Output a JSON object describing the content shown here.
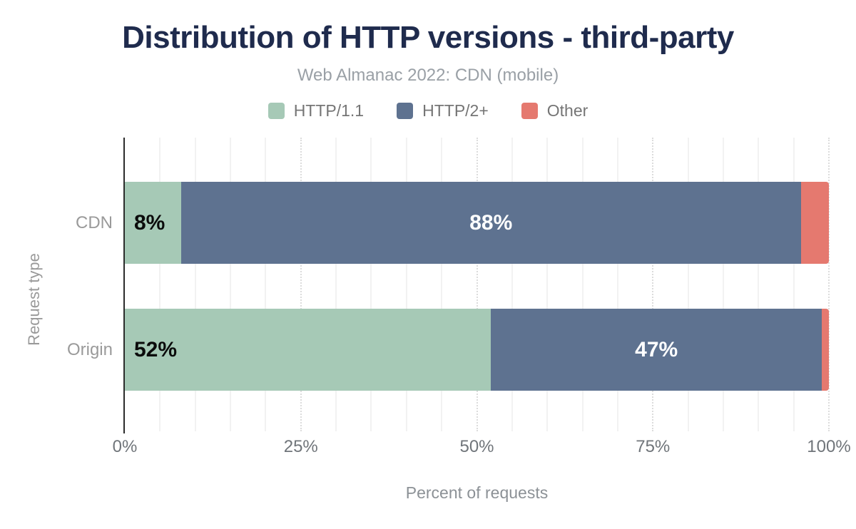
{
  "title": "Distribution of HTTP versions - third-party",
  "subtitle": "Web Almanac 2022: CDN (mobile)",
  "legend": {
    "items": [
      {
        "label": "HTTP/1.1",
        "color": "#a6c9b6"
      },
      {
        "label": "HTTP/2+",
        "color": "#5e7290"
      },
      {
        "label": "Other",
        "color": "#e5796f"
      }
    ]
  },
  "colors": {
    "title": "#1f2b4d",
    "subtitle": "#9aa0a6",
    "axis_line": "#2b2b2b",
    "grid_minor": "#f2f2f2",
    "grid_major": "#dcdcdc",
    "tick_label": "#70757a",
    "category_label": "#9a9a9a",
    "axis_title": "#8c9196"
  },
  "chart_data": {
    "type": "bar",
    "orientation": "horizontal",
    "stacked": true,
    "title": "Distribution of HTTP versions - third-party",
    "subtitle": "Web Almanac 2022: CDN (mobile)",
    "categories": [
      "CDN",
      "Origin"
    ],
    "series": [
      {
        "name": "HTTP/1.1",
        "color": "#a6c9b6",
        "values": [
          8,
          52
        ],
        "labels": [
          "8%",
          "52%"
        ],
        "label_color": "#0b0b0b",
        "label_position": "inside-left"
      },
      {
        "name": "HTTP/2+",
        "color": "#5e7290",
        "values": [
          88,
          47
        ],
        "labels": [
          "88%",
          "47%"
        ],
        "label_color": "#ffffff",
        "label_position": "inside-center"
      },
      {
        "name": "Other",
        "color": "#e5796f",
        "values": [
          4,
          1
        ],
        "labels": [
          "",
          ""
        ],
        "label_color": "#ffffff",
        "label_position": "inside-center"
      }
    ],
    "xlabel": "Percent of requests",
    "ylabel": "Request type",
    "xlim": [
      0,
      100
    ],
    "x_ticks": [
      {
        "value": 0,
        "label": "0%"
      },
      {
        "value": 25,
        "label": "25%"
      },
      {
        "value": 50,
        "label": "50%"
      },
      {
        "value": 75,
        "label": "75%"
      },
      {
        "value": 100,
        "label": "100%"
      }
    ],
    "grid": {
      "minor_step": 5,
      "major_step": 25,
      "legend_position": "top"
    }
  }
}
